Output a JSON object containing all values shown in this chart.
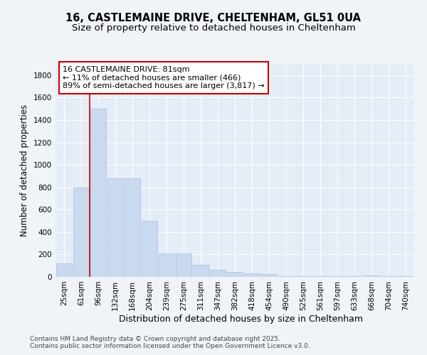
{
  "title1": "16, CASTLEMAINE DRIVE, CHELTENHAM, GL51 0UA",
  "title2": "Size of property relative to detached houses in Cheltenham",
  "xlabel": "Distribution of detached houses by size in Cheltenham",
  "ylabel": "Number of detached properties",
  "bar_labels": [
    "25sqm",
    "61sqm",
    "96sqm",
    "132sqm",
    "168sqm",
    "204sqm",
    "239sqm",
    "275sqm",
    "311sqm",
    "347sqm",
    "382sqm",
    "418sqm",
    "454sqm",
    "490sqm",
    "525sqm",
    "561sqm",
    "597sqm",
    "633sqm",
    "668sqm",
    "704sqm",
    "740sqm"
  ],
  "bar_values": [
    120,
    800,
    1500,
    880,
    880,
    500,
    210,
    210,
    105,
    65,
    45,
    30,
    25,
    5,
    5,
    5,
    5,
    5,
    15,
    5,
    5
  ],
  "bar_color": "#c9d9ef",
  "bar_edge_color": "#a8bedd",
  "vline_x": 1.5,
  "vline_color": "#cc0000",
  "annotation_text": "16 CASTLEMAINE DRIVE: 81sqm\n← 11% of detached houses are smaller (466)\n89% of semi-detached houses are larger (3,817) →",
  "annotation_box_facecolor": "#ffffff",
  "annotation_box_edgecolor": "#cc0000",
  "ylim": [
    0,
    1900
  ],
  "yticks": [
    0,
    200,
    400,
    600,
    800,
    1000,
    1200,
    1400,
    1600,
    1800
  ],
  "bg_color": "#f0f4f8",
  "plot_bg_color": "#e4edf7",
  "grid_color": "#ffffff",
  "footer": "Contains HM Land Registry data © Crown copyright and database right 2025.\nContains public sector information licensed under the Open Government Licence v3.0.",
  "title1_fontsize": 10.5,
  "title2_fontsize": 9.5,
  "xlabel_fontsize": 9,
  "ylabel_fontsize": 8.5,
  "tick_fontsize": 7.5,
  "annotation_fontsize": 8,
  "footer_fontsize": 6.5
}
